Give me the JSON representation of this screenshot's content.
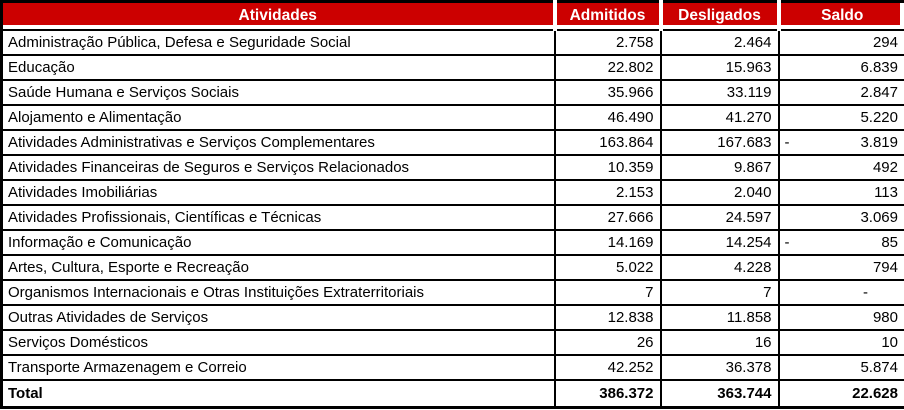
{
  "chart_data": {
    "type": "table",
    "columns": [
      "Atividades",
      "Admitidos",
      "Desligados",
      "Saldo"
    ],
    "rows": [
      {
        "name": "Administração Pública, Defesa e Seguridade Social",
        "admitidos": "2.758",
        "desligados": "2.464",
        "saldo_minus": "",
        "saldo": "294"
      },
      {
        "name": "Educação",
        "admitidos": "22.802",
        "desligados": "15.963",
        "saldo_minus": "",
        "saldo": "6.839"
      },
      {
        "name": "Saúde Humana e Serviços Sociais",
        "admitidos": "35.966",
        "desligados": "33.119",
        "saldo_minus": "",
        "saldo": "2.847"
      },
      {
        "name": "Alojamento e Alimentação",
        "admitidos": "46.490",
        "desligados": "41.270",
        "saldo_minus": "",
        "saldo": "5.220"
      },
      {
        "name": "Atividades Administrativas e Serviços Complementares",
        "admitidos": "163.864",
        "desligados": "167.683",
        "saldo_minus": "-",
        "saldo": "3.819"
      },
      {
        "name": "Atividades Financeiras de Seguros e Serviços Relacionados",
        "admitidos": "10.359",
        "desligados": "9.867",
        "saldo_minus": "",
        "saldo": "492"
      },
      {
        "name": "Atividades Imobiliárias",
        "admitidos": "2.153",
        "desligados": "2.040",
        "saldo_minus": "",
        "saldo": "113"
      },
      {
        "name": "Atividades Profissionais, Científicas e Técnicas",
        "admitidos": "27.666",
        "desligados": "24.597",
        "saldo_minus": "",
        "saldo": "3.069"
      },
      {
        "name": "Informação e Comunicação",
        "admitidos": "14.169",
        "desligados": "14.254",
        "saldo_minus": "-",
        "saldo": "85"
      },
      {
        "name": "Artes, Cultura, Esporte e Recreação",
        "admitidos": "5.022",
        "desligados": "4.228",
        "saldo_minus": "",
        "saldo": "794"
      },
      {
        "name": "Organismos Internacionais e Otras Instituições Extraterritoriais",
        "admitidos": "7",
        "desligados": "7",
        "saldo_minus": "",
        "saldo": "-"
      },
      {
        "name": "Outras Atividades de Serviços",
        "admitidos": "12.838",
        "desligados": "11.858",
        "saldo_minus": "",
        "saldo": "980"
      },
      {
        "name": "Serviços Domésticos",
        "admitidos": "26",
        "desligados": "16",
        "saldo_minus": "",
        "saldo": "10"
      },
      {
        "name": "Transporte Armazenagem e Correio",
        "admitidos": "42.252",
        "desligados": "36.378",
        "saldo_minus": "",
        "saldo": "5.874"
      }
    ],
    "total": {
      "label": "Total",
      "admitidos": "386.372",
      "desligados": "363.744",
      "saldo_minus": "",
      "saldo": "22.628"
    }
  },
  "colors": {
    "header_bg": "#CC0000",
    "header_text": "#FFFFFF",
    "grid": "#000000",
    "row_bg": "#FFFFFF",
    "text": "#000000"
  }
}
